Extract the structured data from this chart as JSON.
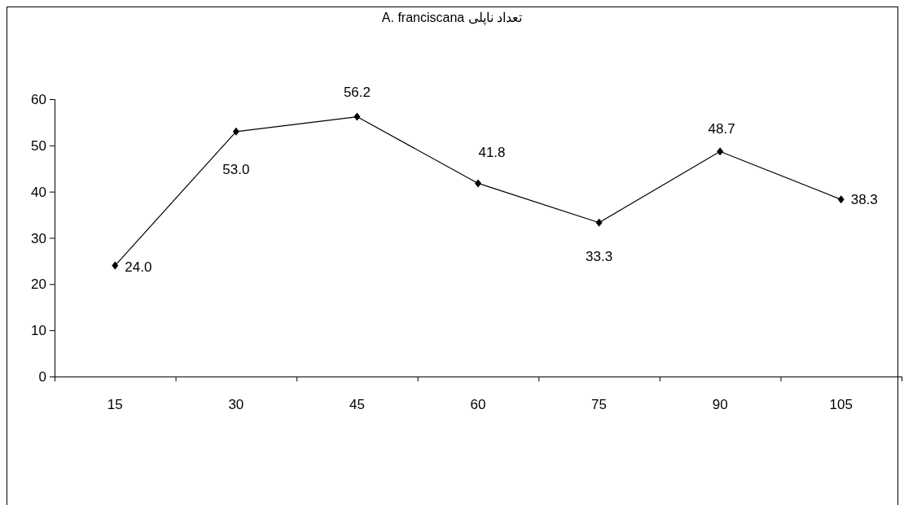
{
  "chart_data": {
    "type": "line",
    "title": "تعداد ناپلی A. franciscana",
    "categories": [
      "15",
      "30",
      "45",
      "60",
      "75",
      "90",
      "105"
    ],
    "values": [
      24.0,
      53.0,
      56.2,
      41.8,
      33.3,
      48.7,
      38.3
    ],
    "value_labels": [
      "24.0",
      "53.0",
      "56.2",
      "41.8",
      "33.3",
      "48.7",
      "38.3"
    ],
    "color": "#000000",
    "marker": "diamond",
    "line_style": "solid",
    "ylim": [
      0,
      60
    ],
    "yticks": [
      0,
      10,
      20,
      30,
      40,
      50,
      60
    ],
    "grid": false
  }
}
